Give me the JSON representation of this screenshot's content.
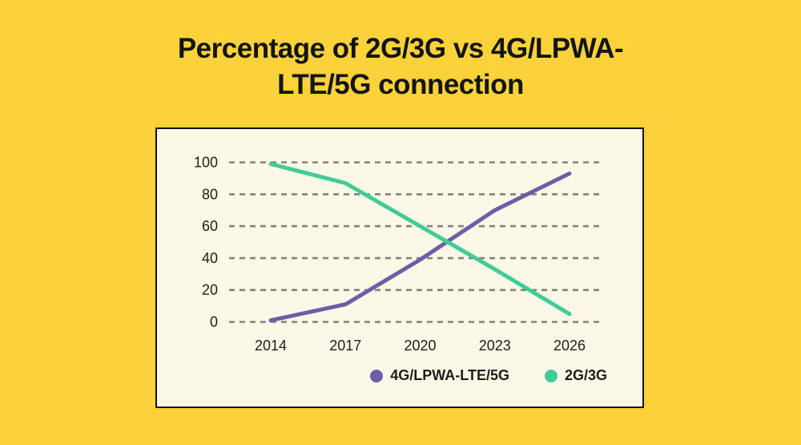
{
  "page": {
    "background_color": "#FCD23B",
    "title_lines": [
      "Percentage of 2G/3G vs 4G/LPWA-",
      "LTE/5G connection"
    ]
  },
  "chart_data": {
    "type": "line",
    "title": "Percentage of 2G/3G vs 4G/LPWA-LTE/5G connection",
    "categories": [
      "2014",
      "2017",
      "2020",
      "2023",
      "2026"
    ],
    "series": [
      {
        "name": "4G/LPWA-LTE/5G",
        "color": "#6C5FA7",
        "values": [
          1,
          11,
          39,
          70,
          93
        ]
      },
      {
        "name": "2G/3G",
        "color": "#41CB96",
        "values": [
          99,
          87,
          60,
          33,
          5
        ]
      }
    ],
    "yticks": [
      0,
      20,
      40,
      60,
      80,
      100
    ],
    "ylim": [
      0,
      100
    ],
    "grid": "dashed-horizontal-only",
    "gridline_color": "#84827A",
    "panel_background": "#FCF8E7",
    "panel_border_color": "#141414",
    "text_color": "#1D1D1B",
    "legend_position": "bottom-right"
  }
}
